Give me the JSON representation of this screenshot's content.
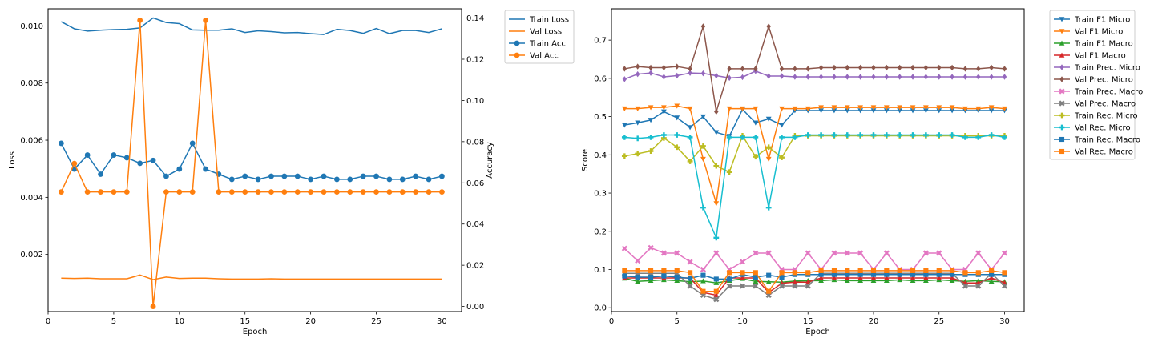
{
  "chart_data": [
    {
      "type": "line",
      "xlabel": "Epoch",
      "ylabel": "Loss",
      "ylabel_right": "Accuracy",
      "xlim": [
        0,
        31.5
      ],
      "xticks": [
        0,
        5,
        10,
        15,
        20,
        25,
        30
      ],
      "ylim": [
        0.0,
        0.0106
      ],
      "yticks": [
        0.002,
        0.004,
        0.006,
        0.008,
        0.01
      ],
      "ytick_labels": [
        "0.002",
        "0.004",
        "0.006",
        "0.008",
        "0.010"
      ],
      "ylim_right": [
        -0.0025,
        0.1445
      ],
      "yticks_right": [
        0.0,
        0.02,
        0.04,
        0.06,
        0.08,
        0.1,
        0.12,
        0.14
      ],
      "ytick_labels_right": [
        "0.00",
        "0.02",
        "0.04",
        "0.06",
        "0.08",
        "0.10",
        "0.12",
        "0.14"
      ],
      "legend_position": "outside-top-right",
      "x": [
        1,
        2,
        3,
        4,
        5,
        6,
        7,
        8,
        9,
        10,
        11,
        12,
        13,
        14,
        15,
        16,
        17,
        18,
        19,
        20,
        21,
        22,
        23,
        24,
        25,
        26,
        27,
        28,
        29,
        30
      ],
      "series": [
        {
          "name": "Train Loss",
          "axis": "left",
          "color": "#1f77b4",
          "marker": "none",
          "values": [
            0.01015,
            0.0099,
            0.00982,
            0.00985,
            0.00987,
            0.00988,
            0.00993,
            0.01028,
            0.01012,
            0.01008,
            0.00986,
            0.00985,
            0.00985,
            0.0099,
            0.00977,
            0.00983,
            0.0098,
            0.00976,
            0.00977,
            0.00973,
            0.0097,
            0.00988,
            0.00984,
            0.00974,
            0.00991,
            0.00973,
            0.00984,
            0.00984,
            0.00977,
            0.0099
          ]
        },
        {
          "name": "Val Loss",
          "axis": "left",
          "color": "#ff7f0e",
          "marker": "none",
          "values": [
            0.00117,
            0.00116,
            0.00117,
            0.00115,
            0.00115,
            0.00115,
            0.00128,
            0.00112,
            0.00121,
            0.00116,
            0.00117,
            0.00117,
            0.00115,
            0.00114,
            0.00114,
            0.00114,
            0.00115,
            0.00114,
            0.00114,
            0.00114,
            0.00114,
            0.00114,
            0.00114,
            0.00114,
            0.00114,
            0.00114,
            0.00114,
            0.00114,
            0.00114,
            0.00114
          ]
        },
        {
          "name": "Train Acc",
          "axis": "right",
          "color": "#1f77b4",
          "marker": "circle",
          "values": [
            0.0792,
            0.0667,
            0.0735,
            0.0642,
            0.0735,
            0.0722,
            0.0695,
            0.0709,
            0.0632,
            0.0667,
            0.0792,
            0.0667,
            0.0642,
            0.0617,
            0.0632,
            0.0617,
            0.0632,
            0.0632,
            0.0632,
            0.0617,
            0.0632,
            0.0617,
            0.0617,
            0.0632,
            0.0632,
            0.0617,
            0.0617,
            0.0632,
            0.0617,
            0.0632
          ]
        },
        {
          "name": "Val Acc",
          "axis": "right",
          "color": "#ff7f0e",
          "marker": "circle",
          "values": [
            0.0556,
            0.0694,
            0.0556,
            0.0556,
            0.0556,
            0.0556,
            0.1389,
            0.0,
            0.0556,
            0.0556,
            0.0556,
            0.1389,
            0.0556,
            0.0556,
            0.0556,
            0.0556,
            0.0556,
            0.0556,
            0.0556,
            0.0556,
            0.0556,
            0.0556,
            0.0556,
            0.0556,
            0.0556,
            0.0556,
            0.0556,
            0.0556,
            0.0556,
            0.0556
          ]
        }
      ]
    },
    {
      "type": "line",
      "xlabel": "Epoch",
      "ylabel": "Score",
      "xlim": [
        0,
        31.5
      ],
      "xticks": [
        0,
        5,
        10,
        15,
        20,
        25,
        30
      ],
      "ylim": [
        -0.01,
        0.782
      ],
      "yticks": [
        0.0,
        0.1,
        0.2,
        0.3,
        0.4,
        0.5,
        0.6,
        0.7
      ],
      "ytick_labels": [
        "0.0",
        "0.1",
        "0.2",
        "0.3",
        "0.4",
        "0.5",
        "0.6",
        "0.7"
      ],
      "legend_position": "outside-top-right",
      "x": [
        1,
        2,
        3,
        4,
        5,
        6,
        7,
        8,
        9,
        10,
        11,
        12,
        13,
        14,
        15,
        16,
        17,
        18,
        19,
        20,
        21,
        22,
        23,
        24,
        25,
        26,
        27,
        28,
        29,
        30
      ],
      "series": [
        {
          "name": "Train F1 Micro",
          "color": "#1f77b4",
          "marker": "tri-down",
          "values": [
            0.478,
            0.484,
            0.491,
            0.513,
            0.497,
            0.472,
            0.5,
            0.459,
            0.449,
            0.519,
            0.484,
            0.494,
            0.478,
            0.516,
            0.516,
            0.516,
            0.516,
            0.516,
            0.516,
            0.516,
            0.516,
            0.516,
            0.516,
            0.516,
            0.516,
            0.516,
            0.516,
            0.516,
            0.516,
            0.516
          ]
        },
        {
          "name": "Val F1 Micro",
          "color": "#ff7f0e",
          "marker": "tri-down",
          "values": [
            0.521,
            0.521,
            0.524,
            0.524,
            0.528,
            0.521,
            0.389,
            0.273,
            0.521,
            0.521,
            0.521,
            0.389,
            0.521,
            0.521,
            0.521,
            0.524,
            0.524,
            0.524,
            0.524,
            0.524,
            0.524,
            0.524,
            0.524,
            0.524,
            0.524,
            0.524,
            0.521,
            0.521,
            0.524,
            0.521
          ]
        },
        {
          "name": "Train F1 Macro",
          "color": "#2ca02c",
          "marker": "tri-up",
          "values": [
            0.077,
            0.069,
            0.071,
            0.073,
            0.071,
            0.068,
            0.07,
            0.065,
            0.071,
            0.076,
            0.069,
            0.068,
            0.067,
            0.07,
            0.071,
            0.071,
            0.073,
            0.071,
            0.071,
            0.071,
            0.071,
            0.073,
            0.071,
            0.071,
            0.073,
            0.071,
            0.069,
            0.071,
            0.069,
            0.068
          ]
        },
        {
          "name": "Val F1 Macro",
          "color": "#d62728",
          "marker": "tri-up",
          "values": [
            0.078,
            0.078,
            0.078,
            0.078,
            0.078,
            0.078,
            0.04,
            0.033,
            0.078,
            0.078,
            0.078,
            0.04,
            0.064,
            0.067,
            0.067,
            0.078,
            0.078,
            0.078,
            0.078,
            0.078,
            0.078,
            0.078,
            0.078,
            0.078,
            0.078,
            0.078,
            0.065,
            0.065,
            0.078,
            0.065
          ]
        },
        {
          "name": "Train Prec. Micro",
          "color": "#9467bd",
          "marker": "diamond",
          "values": [
            0.598,
            0.611,
            0.614,
            0.604,
            0.607,
            0.614,
            0.613,
            0.607,
            0.601,
            0.603,
            0.619,
            0.606,
            0.606,
            0.604,
            0.604,
            0.604,
            0.604,
            0.604,
            0.604,
            0.604,
            0.604,
            0.604,
            0.604,
            0.604,
            0.604,
            0.604,
            0.604,
            0.604,
            0.604,
            0.604
          ]
        },
        {
          "name": "Val Prec. Micro",
          "color": "#8c564b",
          "marker": "diamond",
          "values": [
            0.625,
            0.631,
            0.628,
            0.628,
            0.631,
            0.625,
            0.736,
            0.513,
            0.625,
            0.625,
            0.625,
            0.736,
            0.625,
            0.625,
            0.625,
            0.628,
            0.628,
            0.628,
            0.628,
            0.628,
            0.628,
            0.628,
            0.628,
            0.628,
            0.628,
            0.628,
            0.625,
            0.625,
            0.628,
            0.625
          ]
        },
        {
          "name": "Train Prec. Macro",
          "color": "#e377c2",
          "marker": "x",
          "values": [
            0.155,
            0.123,
            0.157,
            0.143,
            0.143,
            0.12,
            0.1,
            0.143,
            0.1,
            0.12,
            0.143,
            0.143,
            0.1,
            0.1,
            0.143,
            0.1,
            0.143,
            0.143,
            0.143,
            0.1,
            0.143,
            0.1,
            0.1,
            0.143,
            0.143,
            0.1,
            0.1,
            0.143,
            0.1,
            0.143
          ]
        },
        {
          "name": "Val Prec. Macro",
          "color": "#7f7f7f",
          "marker": "x",
          "values": [
            0.09,
            0.09,
            0.09,
            0.09,
            0.09,
            0.057,
            0.033,
            0.022,
            0.057,
            0.057,
            0.057,
            0.033,
            0.057,
            0.057,
            0.057,
            0.09,
            0.09,
            0.09,
            0.09,
            0.09,
            0.09,
            0.09,
            0.09,
            0.09,
            0.09,
            0.09,
            0.057,
            0.057,
            0.09,
            0.057
          ]
        },
        {
          "name": "Train Rec. Micro",
          "color": "#bcbd22",
          "marker": "plus",
          "values": [
            0.397,
            0.403,
            0.41,
            0.444,
            0.42,
            0.383,
            0.423,
            0.371,
            0.355,
            0.45,
            0.395,
            0.42,
            0.393,
            0.45,
            0.45,
            0.45,
            0.45,
            0.45,
            0.45,
            0.45,
            0.45,
            0.45,
            0.45,
            0.45,
            0.45,
            0.45,
            0.45,
            0.45,
            0.45,
            0.45
          ]
        },
        {
          "name": "Val Rec. Micro",
          "color": "#17becf",
          "marker": "plus",
          "values": [
            0.446,
            0.443,
            0.446,
            0.452,
            0.452,
            0.446,
            0.262,
            0.183,
            0.446,
            0.446,
            0.446,
            0.262,
            0.446,
            0.446,
            0.452,
            0.452,
            0.452,
            0.452,
            0.452,
            0.452,
            0.452,
            0.452,
            0.452,
            0.452,
            0.452,
            0.452,
            0.446,
            0.446,
            0.452,
            0.446
          ]
        },
        {
          "name": "Train Rec. Macro",
          "color": "#1f77b4",
          "marker": "square",
          "values": [
            0.083,
            0.08,
            0.08,
            0.083,
            0.08,
            0.077,
            0.085,
            0.075,
            0.075,
            0.087,
            0.08,
            0.085,
            0.08,
            0.087,
            0.087,
            0.087,
            0.087,
            0.087,
            0.087,
            0.087,
            0.087,
            0.087,
            0.087,
            0.087,
            0.087,
            0.087,
            0.087,
            0.087,
            0.087,
            0.087
          ]
        },
        {
          "name": "Val Rec. Macro",
          "color": "#ff7f0e",
          "marker": "square",
          "values": [
            0.097,
            0.097,
            0.097,
            0.097,
            0.097,
            0.092,
            0.043,
            0.043,
            0.092,
            0.092,
            0.092,
            0.043,
            0.092,
            0.092,
            0.092,
            0.097,
            0.097,
            0.097,
            0.097,
            0.097,
            0.097,
            0.097,
            0.097,
            0.097,
            0.097,
            0.097,
            0.092,
            0.092,
            0.097,
            0.092
          ]
        }
      ]
    }
  ]
}
